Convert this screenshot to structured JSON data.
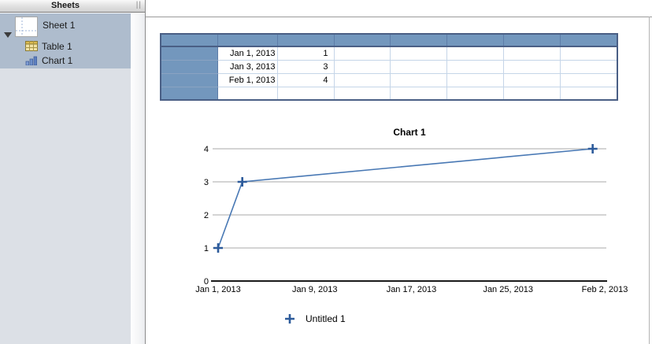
{
  "sidebar": {
    "title": "Sheets",
    "grip": "||",
    "items": [
      {
        "label": "Sheet 1",
        "icon": "sheet-icon",
        "expanded": true,
        "selected": true
      },
      {
        "label": "Table 1",
        "icon": "table-icon",
        "parent": "Sheet 1"
      },
      {
        "label": "Chart 1",
        "icon": "chart-icon",
        "parent": "Sheet 1"
      }
    ]
  },
  "table": {
    "name": "Table 1",
    "header_row_cells": 8,
    "body_columns": 7,
    "rows": [
      [
        "Jan 1, 2013",
        "1",
        "",
        "",
        "",
        "",
        ""
      ],
      [
        "Jan 3, 2013",
        "3",
        "",
        "",
        "",
        "",
        ""
      ],
      [
        "Feb 1, 2013",
        "4",
        "",
        "",
        "",
        "",
        ""
      ],
      [
        "",
        "",
        "",
        "",
        "",
        "",
        ""
      ]
    ],
    "colors": {
      "header_fill": "#7397bd",
      "outer_border": "#4a5f85",
      "grid": "#c5d5e8"
    }
  },
  "chart_data": {
    "type": "line",
    "title": "Chart 1",
    "series": [
      {
        "name": "Untitled 1",
        "x": [
          "Jan 1, 2013",
          "Jan 3, 2013",
          "Feb 1, 2013"
        ],
        "x_days": [
          0,
          2,
          31
        ],
        "values": [
          1,
          3,
          4
        ]
      }
    ],
    "x_ticks": [
      {
        "label": "Jan 1, 2013",
        "day": 0
      },
      {
        "label": "Jan 9, 2013",
        "day": 8
      },
      {
        "label": "Jan 17, 2013",
        "day": 16
      },
      {
        "label": "Jan 25, 2013",
        "day": 24
      },
      {
        "label": "Feb 2, 2013",
        "day": 32
      }
    ],
    "x_range_days": [
      0,
      32
    ],
    "y_ticks": [
      0,
      1,
      2,
      3,
      4
    ],
    "ylim": [
      0,
      4
    ],
    "grid": true,
    "marker": "plus",
    "legend_position": "bottom",
    "line_color": "#4878b4",
    "marker_color": "#2d5b9b",
    "gridline_color": "#a8a8a8",
    "axis_color": "#1a1a1a"
  }
}
